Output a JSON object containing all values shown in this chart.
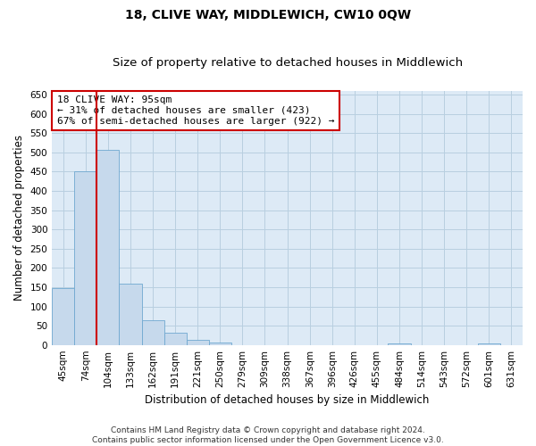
{
  "title": "18, CLIVE WAY, MIDDLEWICH, CW10 0QW",
  "subtitle": "Size of property relative to detached houses in Middlewich",
  "xlabel": "Distribution of detached houses by size in Middlewich",
  "ylabel": "Number of detached properties",
  "categories": [
    "45sqm",
    "74sqm",
    "104sqm",
    "133sqm",
    "162sqm",
    "191sqm",
    "221sqm",
    "250sqm",
    "279sqm",
    "309sqm",
    "338sqm",
    "367sqm",
    "396sqm",
    "426sqm",
    "455sqm",
    "484sqm",
    "514sqm",
    "543sqm",
    "572sqm",
    "601sqm",
    "631sqm"
  ],
  "values": [
    148,
    450,
    507,
    158,
    65,
    31,
    13,
    6,
    0,
    0,
    0,
    0,
    0,
    0,
    0,
    5,
    0,
    0,
    0,
    4,
    0
  ],
  "bar_color": "#c6d9ec",
  "bar_edge_color": "#6fa8d0",
  "grid_color": "#b8cfe0",
  "background_color": "#ddeaf6",
  "vline_x": 2.0,
  "vline_color": "#cc0000",
  "ylim": [
    0,
    660
  ],
  "yticks": [
    0,
    50,
    100,
    150,
    200,
    250,
    300,
    350,
    400,
    450,
    500,
    550,
    600,
    650
  ],
  "annotation_text": "18 CLIVE WAY: 95sqm\n← 31% of detached houses are smaller (423)\n67% of semi-detached houses are larger (922) →",
  "annotation_box_color": "#ffffff",
  "annotation_box_edge": "#cc0000",
  "footnote": "Contains HM Land Registry data © Crown copyright and database right 2024.\nContains public sector information licensed under the Open Government Licence v3.0.",
  "title_fontsize": 10,
  "subtitle_fontsize": 9.5,
  "axis_label_fontsize": 8.5,
  "tick_fontsize": 7.5,
  "annotation_fontsize": 8,
  "footnote_fontsize": 6.5
}
